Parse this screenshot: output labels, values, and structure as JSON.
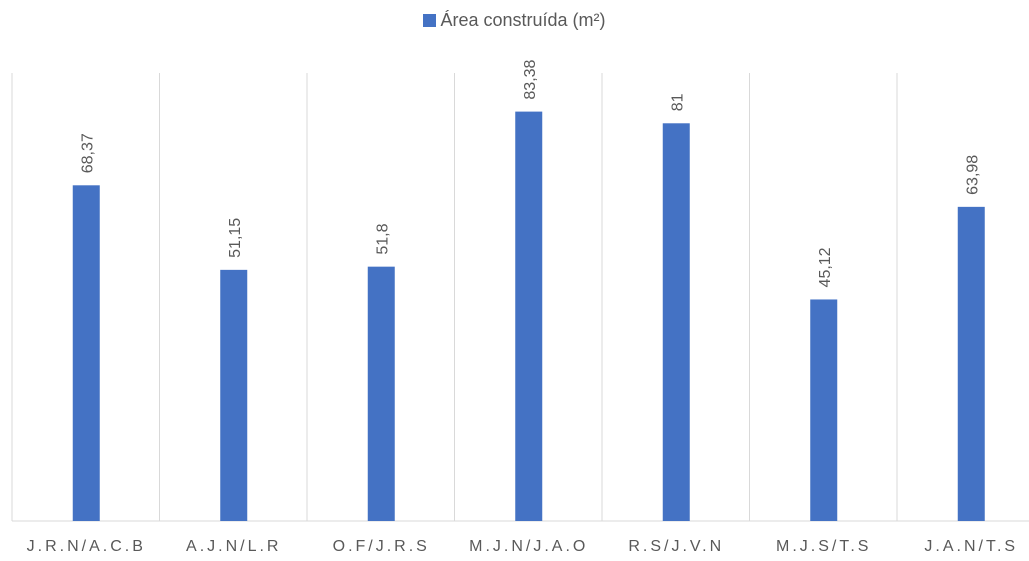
{
  "chart_data": {
    "type": "bar",
    "categories": [
      "J.R.N/A.C.B",
      "A.J.N/L.R",
      "O.F/J.R.S",
      "M.J.N/J.A.O",
      "R.S/J.V.N",
      "M.J.S/T.S",
      "J.A.N/T.S"
    ],
    "series": [
      {
        "name": "Área construída (m²)",
        "values": [
          68.37,
          51.15,
          51.8,
          83.38,
          81,
          45.12,
          63.98
        ],
        "labels": [
          "68,37",
          "51,15",
          "51,8",
          "83,38",
          "81",
          "45,12",
          "63,98"
        ],
        "color": "#4472C4"
      }
    ],
    "ylim": [
      0,
      90
    ],
    "grid": "vertical category separators",
    "legend_position": "top-center"
  }
}
